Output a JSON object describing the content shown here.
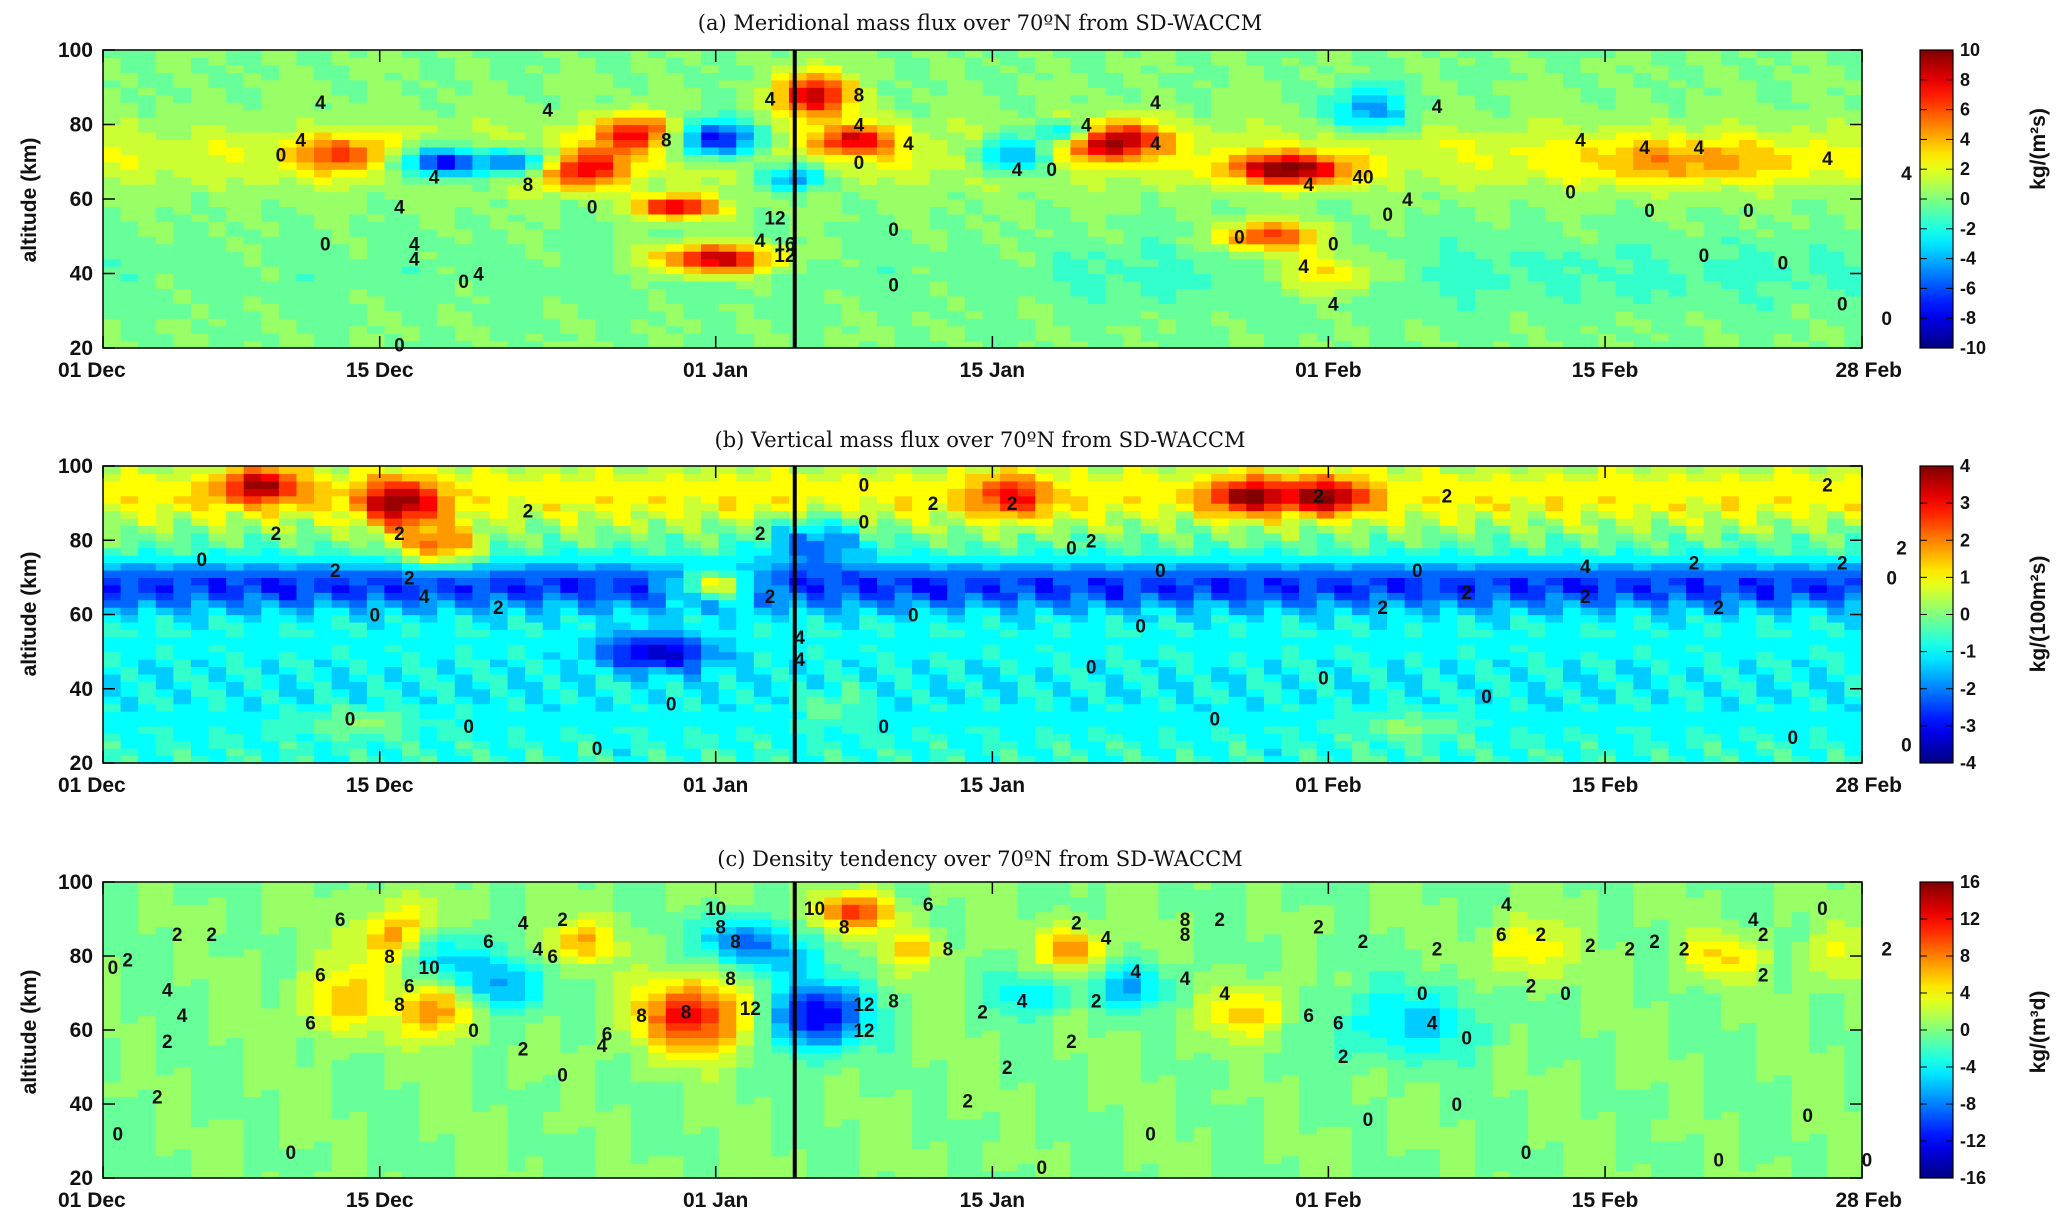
{
  "chart_data": [
    {
      "type": "heatmap",
      "title": "(a) Meridional mass flux over 70ºN from SD-WACCM",
      "ylabel": "altitude (km)",
      "colorbar_label": "kg/(m²s)",
      "x_ticks": [
        "01 Dec",
        "15 Dec",
        "01 Jan",
        "15 Jan",
        "01 Feb",
        "15 Feb",
        "28 Feb"
      ],
      "y_ticks": [
        "20",
        "40",
        "60",
        "80",
        "100"
      ],
      "ylim": [
        20,
        100
      ],
      "colorbar_ticks": [
        "10",
        "8",
        "6",
        "4",
        "2",
        "0",
        "-2",
        "-4",
        "-6",
        "-8",
        "-10"
      ],
      "clim": [
        -10,
        10
      ],
      "vertical_line_at": "05 Jan",
      "contour_labels": [
        {
          "text": "4",
          "x": 67,
          "y": 66
        },
        {
          "text": "4",
          "x": 40,
          "y": 76
        },
        {
          "text": "4",
          "x": 44,
          "y": 86
        },
        {
          "text": "0",
          "x": 36,
          "y": 72
        },
        {
          "text": "0",
          "x": 45,
          "y": 48
        },
        {
          "text": "4",
          "x": 60,
          "y": 58
        },
        {
          "text": "4",
          "x": 63,
          "y": 48
        },
        {
          "text": "4",
          "x": 63,
          "y": 44
        },
        {
          "text": "0",
          "x": 73,
          "y": 38
        },
        {
          "text": "8",
          "x": 86,
          "y": 64
        },
        {
          "text": "4",
          "x": 90,
          "y": 84
        },
        {
          "text": "0",
          "x": 60,
          "y": 21
        },
        {
          "text": "4",
          "x": 76,
          "y": 40
        },
        {
          "text": "0",
          "x": 99,
          "y": 58
        },
        {
          "text": "8",
          "x": 114,
          "y": 76
        },
        {
          "text": "4",
          "x": 135,
          "y": 87
        },
        {
          "text": "12",
          "x": 136,
          "y": 55
        },
        {
          "text": "16",
          "x": 138,
          "y": 48
        },
        {
          "text": "12",
          "x": 138,
          "y": 45
        },
        {
          "text": "4",
          "x": 133,
          "y": 49
        },
        {
          "text": "8",
          "x": 153,
          "y": 88
        },
        {
          "text": "4",
          "x": 153,
          "y": 80
        },
        {
          "text": "0",
          "x": 153,
          "y": 70
        },
        {
          "text": "4",
          "x": 163,
          "y": 75
        },
        {
          "text": "0",
          "x": 160,
          "y": 52
        },
        {
          "text": "0",
          "x": 160,
          "y": 37
        },
        {
          "text": "4",
          "x": 185,
          "y": 68
        },
        {
          "text": "4",
          "x": 199,
          "y": 80
        },
        {
          "text": "4",
          "x": 213,
          "y": 86
        },
        {
          "text": "0",
          "x": 192,
          "y": 68
        },
        {
          "text": "4",
          "x": 213,
          "y": 75
        },
        {
          "text": "0",
          "x": 230,
          "y": 50
        },
        {
          "text": "4",
          "x": 244,
          "y": 64
        },
        {
          "text": "4",
          "x": 243,
          "y": 42
        },
        {
          "text": "4",
          "x": 249,
          "y": 32
        },
        {
          "text": "0",
          "x": 249,
          "y": 48
        },
        {
          "text": "40",
          "x": 255,
          "y": 66
        },
        {
          "text": "0",
          "x": 260,
          "y": 56
        },
        {
          "text": "4",
          "x": 264,
          "y": 60
        },
        {
          "text": "4",
          "x": 270,
          "y": 85
        },
        {
          "text": "4",
          "x": 299,
          "y": 76
        },
        {
          "text": "4",
          "x": 312,
          "y": 74
        },
        {
          "text": "4",
          "x": 323,
          "y": 74
        },
        {
          "text": "0",
          "x": 297,
          "y": 62
        },
        {
          "text": "0",
          "x": 313,
          "y": 57
        },
        {
          "text": "0",
          "x": 333,
          "y": 57
        },
        {
          "text": "4",
          "x": 349,
          "y": 71
        },
        {
          "text": "4",
          "x": 365,
          "y": 67
        },
        {
          "text": "0",
          "x": 324,
          "y": 45
        },
        {
          "text": "0",
          "x": 340,
          "y": 43
        },
        {
          "text": "0",
          "x": 352,
          "y": 32
        },
        {
          "text": "0",
          "x": 361,
          "y": 28
        }
      ]
    },
    {
      "type": "heatmap",
      "title": "(b) Vertical mass flux over 70ºN from SD-WACCM",
      "ylabel": "altitude (km)",
      "colorbar_label": "kg/(100m²s)",
      "x_ticks": [
        "01 Dec",
        "15 Dec",
        "01 Jan",
        "15 Jan",
        "01 Feb",
        "15 Feb",
        "28 Feb"
      ],
      "y_ticks": [
        "20",
        "40",
        "60",
        "80",
        "100"
      ],
      "ylim": [
        20,
        100
      ],
      "colorbar_ticks": [
        "4",
        "3",
        "2",
        "1",
        "0",
        "-1",
        "-2",
        "-3",
        "-4"
      ],
      "clim": [
        -4,
        4
      ],
      "vertical_line_at": "05 Jan",
      "contour_labels": [
        {
          "text": "0",
          "x": 20,
          "y": 75
        },
        {
          "text": "2",
          "x": 35,
          "y": 82
        },
        {
          "text": "2",
          "x": 47,
          "y": 72
        },
        {
          "text": "2",
          "x": 60,
          "y": 82
        },
        {
          "text": "2",
          "x": 62,
          "y": 70
        },
        {
          "text": "4",
          "x": 65,
          "y": 65
        },
        {
          "text": "2",
          "x": 80,
          "y": 62
        },
        {
          "text": "0",
          "x": 55,
          "y": 60
        },
        {
          "text": "0",
          "x": 50,
          "y": 32
        },
        {
          "text": "0",
          "x": 74,
          "y": 30
        },
        {
          "text": "2",
          "x": 86,
          "y": 88
        },
        {
          "text": "0",
          "x": 100,
          "y": 24
        },
        {
          "text": "0",
          "x": 115,
          "y": 36
        },
        {
          "text": "2",
          "x": 135,
          "y": 65
        },
        {
          "text": "2",
          "x": 133,
          "y": 82
        },
        {
          "text": "4",
          "x": 141,
          "y": 54
        },
        {
          "text": "4",
          "x": 141,
          "y": 48
        },
        {
          "text": "0",
          "x": 154,
          "y": 85
        },
        {
          "text": "0",
          "x": 154,
          "y": 95
        },
        {
          "text": "0",
          "x": 158,
          "y": 30
        },
        {
          "text": "0",
          "x": 164,
          "y": 60
        },
        {
          "text": "2",
          "x": 168,
          "y": 90
        },
        {
          "text": "2",
          "x": 184,
          "y": 90
        },
        {
          "text": "2",
          "x": 200,
          "y": 80
        },
        {
          "text": "0",
          "x": 196,
          "y": 78
        },
        {
          "text": "0",
          "x": 214,
          "y": 72
        },
        {
          "text": "0",
          "x": 210,
          "y": 57
        },
        {
          "text": "0",
          "x": 200,
          "y": 46
        },
        {
          "text": "0",
          "x": 225,
          "y": 32
        },
        {
          "text": "0",
          "x": 247,
          "y": 43
        },
        {
          "text": "2",
          "x": 246,
          "y": 92
        },
        {
          "text": "2",
          "x": 272,
          "y": 92
        },
        {
          "text": "2",
          "x": 259,
          "y": 62
        },
        {
          "text": "0",
          "x": 266,
          "y": 72
        },
        {
          "text": "2",
          "x": 276,
          "y": 66
        },
        {
          "text": "0",
          "x": 280,
          "y": 38
        },
        {
          "text": "2",
          "x": 300,
          "y": 65
        },
        {
          "text": "4",
          "x": 300,
          "y": 73
        },
        {
          "text": "2",
          "x": 327,
          "y": 62
        },
        {
          "text": "2",
          "x": 322,
          "y": 74
        },
        {
          "text": "0",
          "x": 342,
          "y": 27
        },
        {
          "text": "2",
          "x": 352,
          "y": 74
        },
        {
          "text": "2",
          "x": 349,
          "y": 95
        },
        {
          "text": "2",
          "x": 364,
          "y": 78
        },
        {
          "text": "0",
          "x": 365,
          "y": 25
        },
        {
          "text": "0",
          "x": 362,
          "y": 70
        }
      ]
    },
    {
      "type": "heatmap",
      "title": "(c) Density tendency over 70ºN from SD-WACCM",
      "ylabel": "altitude (km)",
      "colorbar_label": "kg/(m³d)",
      "x_ticks": [
        "01 Dec",
        "15 Dec",
        "01 Jan",
        "15 Jan",
        "01 Feb",
        "15 Feb",
        "28 Feb"
      ],
      "y_ticks": [
        "20",
        "40",
        "60",
        "80",
        "100"
      ],
      "ylim": [
        20,
        100
      ],
      "colorbar_ticks": [
        "16",
        "12",
        "8",
        "4",
        "0",
        "-4",
        "-8",
        "-12",
        "-16"
      ],
      "clim": [
        -16,
        16
      ],
      "vertical_line_at": "05 Jan",
      "contour_labels": [
        {
          "text": "0",
          "x": 2,
          "y": 77
        },
        {
          "text": "2",
          "x": 5,
          "y": 79
        },
        {
          "text": "2",
          "x": 15,
          "y": 86
        },
        {
          "text": "4",
          "x": 13,
          "y": 71
        },
        {
          "text": "4",
          "x": 16,
          "y": 64
        },
        {
          "text": "2",
          "x": 13,
          "y": 57
        },
        {
          "text": "2",
          "x": 11,
          "y": 42
        },
        {
          "text": "0",
          "x": 3,
          "y": 32
        },
        {
          "text": "2",
          "x": 22,
          "y": 86
        },
        {
          "text": "6",
          "x": 44,
          "y": 75
        },
        {
          "text": "6",
          "x": 42,
          "y": 62
        },
        {
          "text": "6",
          "x": 48,
          "y": 90
        },
        {
          "text": "8",
          "x": 58,
          "y": 80
        },
        {
          "text": "6",
          "x": 62,
          "y": 72
        },
        {
          "text": "8",
          "x": 60,
          "y": 67
        },
        {
          "text": "10",
          "x": 66,
          "y": 77
        },
        {
          "text": "6",
          "x": 78,
          "y": 84
        },
        {
          "text": "4",
          "x": 85,
          "y": 89
        },
        {
          "text": "4",
          "x": 88,
          "y": 82
        },
        {
          "text": "2",
          "x": 93,
          "y": 90
        },
        {
          "text": "6",
          "x": 91,
          "y": 80
        },
        {
          "text": "0",
          "x": 75,
          "y": 60
        },
        {
          "text": "2",
          "x": 85,
          "y": 55
        },
        {
          "text": "0",
          "x": 93,
          "y": 48
        },
        {
          "text": "6",
          "x": 102,
          "y": 59
        },
        {
          "text": "8",
          "x": 109,
          "y": 64
        },
        {
          "text": "4",
          "x": 101,
          "y": 56
        },
        {
          "text": "0",
          "x": 38,
          "y": 27
        },
        {
          "text": "10",
          "x": 124,
          "y": 93
        },
        {
          "text": "8",
          "x": 125,
          "y": 88
        },
        {
          "text": "8",
          "x": 128,
          "y": 84
        },
        {
          "text": "12",
          "x": 131,
          "y": 66
        },
        {
          "text": "8",
          "x": 127,
          "y": 74
        },
        {
          "text": "8",
          "x": 118,
          "y": 65
        },
        {
          "text": "10",
          "x": 144,
          "y": 93
        },
        {
          "text": "8",
          "x": 150,
          "y": 88
        },
        {
          "text": "12",
          "x": 154,
          "y": 67
        },
        {
          "text": "12",
          "x": 154,
          "y": 60
        },
        {
          "text": "8",
          "x": 160,
          "y": 68
        },
        {
          "text": "8",
          "x": 171,
          "y": 82
        },
        {
          "text": "6",
          "x": 167,
          "y": 94
        },
        {
          "text": "2",
          "x": 178,
          "y": 65
        },
        {
          "text": "4",
          "x": 186,
          "y": 68
        },
        {
          "text": "2",
          "x": 183,
          "y": 50
        },
        {
          "text": "2",
          "x": 175,
          "y": 41
        },
        {
          "text": "2",
          "x": 197,
          "y": 89
        },
        {
          "text": "4",
          "x": 203,
          "y": 85
        },
        {
          "text": "4",
          "x": 209,
          "y": 76
        },
        {
          "text": "2",
          "x": 201,
          "y": 68
        },
        {
          "text": "2",
          "x": 196,
          "y": 57
        },
        {
          "text": "8",
          "x": 219,
          "y": 90
        },
        {
          "text": "8",
          "x": 219,
          "y": 86
        },
        {
          "text": "2",
          "x": 226,
          "y": 90
        },
        {
          "text": "4",
          "x": 219,
          "y": 74
        },
        {
          "text": "4",
          "x": 227,
          "y": 70
        },
        {
          "text": "0",
          "x": 212,
          "y": 32
        },
        {
          "text": "0",
          "x": 190,
          "y": 23
        },
        {
          "text": "2",
          "x": 246,
          "y": 88
        },
        {
          "text": "2",
          "x": 255,
          "y": 84
        },
        {
          "text": "6",
          "x": 250,
          "y": 62
        },
        {
          "text": "6",
          "x": 244,
          "y": 64
        },
        {
          "text": "2",
          "x": 251,
          "y": 53
        },
        {
          "text": "0",
          "x": 267,
          "y": 70
        },
        {
          "text": "2",
          "x": 270,
          "y": 82
        },
        {
          "text": "4",
          "x": 269,
          "y": 62
        },
        {
          "text": "0",
          "x": 256,
          "y": 36
        },
        {
          "text": "4",
          "x": 284,
          "y": 94
        },
        {
          "text": "6",
          "x": 283,
          "y": 86
        },
        {
          "text": "2",
          "x": 291,
          "y": 86
        },
        {
          "text": "2",
          "x": 289,
          "y": 72
        },
        {
          "text": "0",
          "x": 274,
          "y": 40
        },
        {
          "text": "2",
          "x": 301,
          "y": 83
        },
        {
          "text": "2",
          "x": 309,
          "y": 82
        },
        {
          "text": "0",
          "x": 296,
          "y": 70
        },
        {
          "text": "0",
          "x": 276,
          "y": 58
        },
        {
          "text": "0",
          "x": 288,
          "y": 27
        },
        {
          "text": "2",
          "x": 314,
          "y": 84
        },
        {
          "text": "2",
          "x": 320,
          "y": 82
        },
        {
          "text": "4",
          "x": 334,
          "y": 90
        },
        {
          "text": "2",
          "x": 336,
          "y": 86
        },
        {
          "text": "0",
          "x": 348,
          "y": 93
        },
        {
          "text": "2",
          "x": 336,
          "y": 75
        },
        {
          "text": "0",
          "x": 345,
          "y": 37
        },
        {
          "text": "0",
          "x": 327,
          "y": 25
        },
        {
          "text": "2",
          "x": 361,
          "y": 82
        },
        {
          "text": "0",
          "x": 357,
          "y": 25
        }
      ]
    }
  ]
}
